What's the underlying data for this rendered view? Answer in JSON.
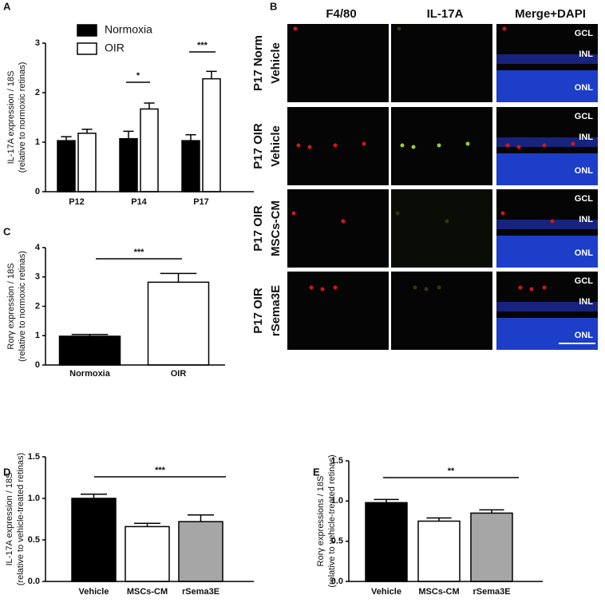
{
  "panel_labels": [
    "A",
    "B",
    "C",
    "D",
    "E"
  ],
  "chart_data": [
    {
      "type": "bar",
      "ylabel": [
        "IL-17A expression / 18S",
        "(relative to normoxic retinas)"
      ],
      "categories": [
        "P12",
        "P14",
        "P17"
      ],
      "series": [
        {
          "name": "Normoxia",
          "color": "#000000",
          "values": [
            1.03,
            1.07,
            1.03
          ],
          "errors": [
            0.08,
            0.15,
            0.12
          ]
        },
        {
          "name": "OIR",
          "color": "#ffffff",
          "values": [
            1.18,
            1.67,
            2.28
          ],
          "errors": [
            0.08,
            0.12,
            0.15
          ]
        }
      ],
      "ylim": [
        0,
        3
      ],
      "yticks": [
        0,
        1,
        2,
        3
      ],
      "annotations": [
        "*",
        "***"
      ]
    },
    {
      "type": "bar",
      "ylabel": [
        "Rorγ expression / 18S",
        "(relative to normoxic retinas)"
      ],
      "categories": [
        "Normoxia",
        "OIR"
      ],
      "values": [
        0.98,
        2.82
      ],
      "errors": [
        0.06,
        0.3
      ],
      "colors": [
        "#000000",
        "#ffffff"
      ],
      "ylim": [
        0,
        4
      ],
      "yticks": [
        0,
        1,
        2,
        3,
        4
      ],
      "annotations": [
        "***"
      ]
    },
    {
      "type": "bar",
      "ylabel": [
        "IL-17A expression / 18S",
        "(relative to vehicle-treated retinas)"
      ],
      "categories": [
        "Vehicle",
        "MSCs-CM",
        "rSema3E"
      ],
      "values": [
        1.0,
        0.66,
        0.72
      ],
      "errors": [
        0.05,
        0.04,
        0.08
      ],
      "colors": [
        "#000000",
        "#ffffff",
        "#a6a6a6"
      ],
      "ylim": [
        0,
        1.5
      ],
      "yticks": [
        {
          "value": 0,
          "label": "0.0"
        },
        {
          "value": 0.5,
          "label": "0.5"
        },
        {
          "value": 1,
          "label": "1.0"
        },
        {
          "value": 1.5,
          "label": "1.5"
        }
      ],
      "annotations": [
        "***"
      ]
    },
    {
      "type": "bar",
      "ylabel": [
        "Rorγ expressions / 18S",
        "(relative to vehicle-treated retinas)"
      ],
      "categories": [
        "Vehicle",
        "MSCs-CM",
        "rSema3E"
      ],
      "values": [
        0.98,
        0.75,
        0.85
      ],
      "errors": [
        0.04,
        0.04,
        0.04
      ],
      "colors": [
        "#000000",
        "#ffffff",
        "#a6a6a6"
      ],
      "ylim": [
        0,
        1.5
      ],
      "yticks": [
        {
          "value": 0,
          "label": "0.0"
        },
        {
          "value": 0.5,
          "label": "0.5"
        },
        {
          "value": 1,
          "label": "1.0"
        },
        {
          "value": 1.5,
          "label": "1.5"
        }
      ],
      "annotations": [
        "**"
      ]
    }
  ],
  "micrograph": {
    "columns": [
      "F4/80",
      "IL-17A",
      "Merge+DAPI"
    ],
    "rows": [
      [
        "P17 Norm",
        "Vehicle"
      ],
      [
        "P17 OIR",
        "Vehicle"
      ],
      [
        "P17 OIR",
        "MSCs-CM"
      ],
      [
        "P17 OIR",
        "rSema3E"
      ]
    ],
    "layers": [
      "GCL",
      "INL",
      "ONL"
    ]
  }
}
